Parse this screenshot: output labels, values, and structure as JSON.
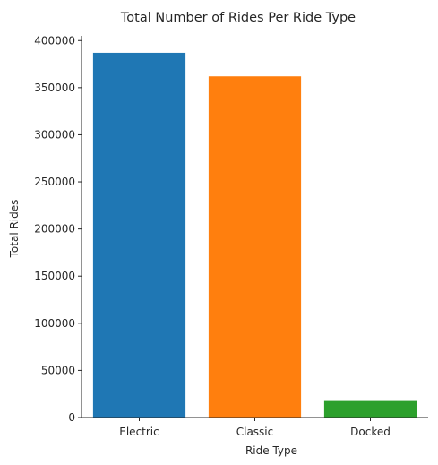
{
  "chart_data": {
    "type": "bar",
    "title": "Total Number of Rides Per Ride Type",
    "xlabel": "Ride Type",
    "ylabel": "Total Rides",
    "categories": [
      "Electric",
      "Classic",
      "Docked"
    ],
    "values": [
      387000,
      362000,
      17500
    ],
    "colors": [
      "#1f77b4",
      "#ff7f0e",
      "#2ca02c"
    ],
    "ylim": [
      0,
      405000
    ],
    "yticks": [
      0,
      50000,
      100000,
      150000,
      200000,
      250000,
      300000,
      350000,
      400000
    ],
    "ytick_labels": [
      "0",
      "50000",
      "100000",
      "150000",
      "200000",
      "250000",
      "300000",
      "350000",
      "400000"
    ],
    "grid": false,
    "legend": "none"
  }
}
